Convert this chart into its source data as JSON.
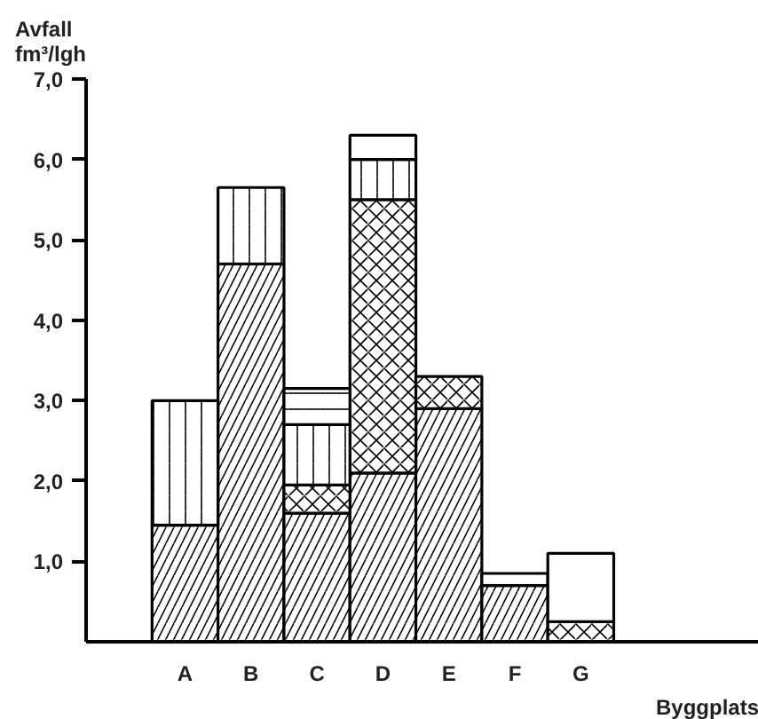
{
  "chart_data": {
    "type": "bar",
    "stacked": true,
    "xlabel": "Byggplats",
    "ylabel": "Avfall\nfm³/lgh",
    "categories": [
      "A",
      "B",
      "C",
      "D",
      "E",
      "F",
      "G"
    ],
    "series": [
      {
        "color": "#000000",
        "values": [
          1.45,
          4.7,
          1.6,
          2.1,
          2.9,
          0.7,
          null
        ]
      },
      {
        "color": "#000000",
        "values": [
          null,
          null,
          0.35,
          3.4,
          0.4,
          null,
          0.25
        ]
      },
      {
        "color": "#000000",
        "values": [
          1.55,
          0.95,
          0.75,
          0.5,
          null,
          null,
          null
        ]
      },
      {
        "color": "#000000",
        "values": [
          null,
          null,
          0.45,
          null,
          null,
          0.15,
          null
        ]
      },
      {
        "color": "#000000",
        "values": [
          null,
          null,
          null,
          0.3,
          null,
          null,
          0.85
        ]
      }
    ],
    "ylim": [
      0,
      7
    ],
    "yticks": [
      {
        "value": 1,
        "label": "1,0"
      },
      {
        "value": 2,
        "label": "2,0"
      },
      {
        "value": 3,
        "label": "3,0"
      },
      {
        "value": 4,
        "label": "4,0"
      },
      {
        "value": 5,
        "label": "5,0"
      },
      {
        "value": 6,
        "label": "6,0"
      },
      {
        "value": 7,
        "label": "7,0"
      }
    ],
    "grid": false
  }
}
